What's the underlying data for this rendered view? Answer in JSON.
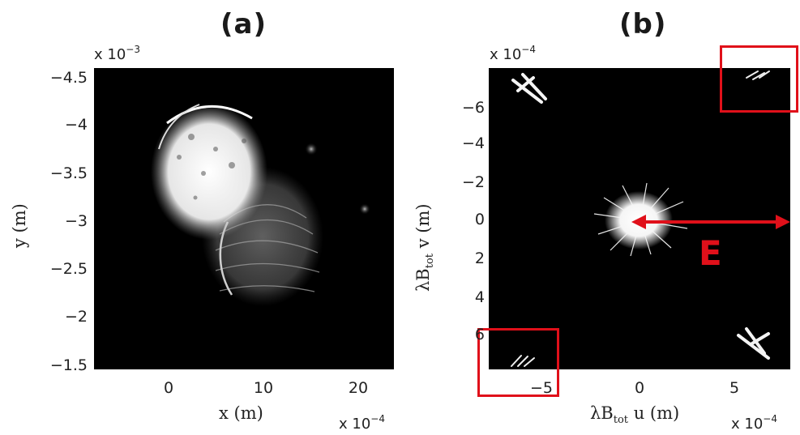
{
  "panels": {
    "a": {
      "title": "(a)",
      "y_multiplier": "x 10",
      "y_multiplier_exp": "−3",
      "x_multiplier": "x 10",
      "x_multiplier_exp": "−4",
      "xlabel": "x (m)",
      "ylabel": "y (m)",
      "yticks": [
        "−4.5",
        "−4",
        "−3.5",
        "−3",
        "−2.5",
        "−2",
        "−1.5"
      ],
      "xticks": [
        "0",
        "10",
        "20"
      ]
    },
    "b": {
      "title": "(b)",
      "y_multiplier": "x 10",
      "y_multiplier_exp": "−4",
      "x_multiplier": "x 10",
      "x_multiplier_exp": "−4",
      "xlabel_pre": "λB",
      "xlabel_sub": "tot",
      "xlabel_post": " u (m)",
      "ylabel_pre": "λB",
      "ylabel_sub": "tot",
      "ylabel_post": " v (m)",
      "yticks": [
        "−6",
        "−4",
        "−2",
        "0",
        "2",
        "4",
        "6"
      ],
      "xticks": [
        "−5",
        "0",
        "5"
      ],
      "annotation": "E",
      "accent_color": "#e0101a"
    }
  }
}
